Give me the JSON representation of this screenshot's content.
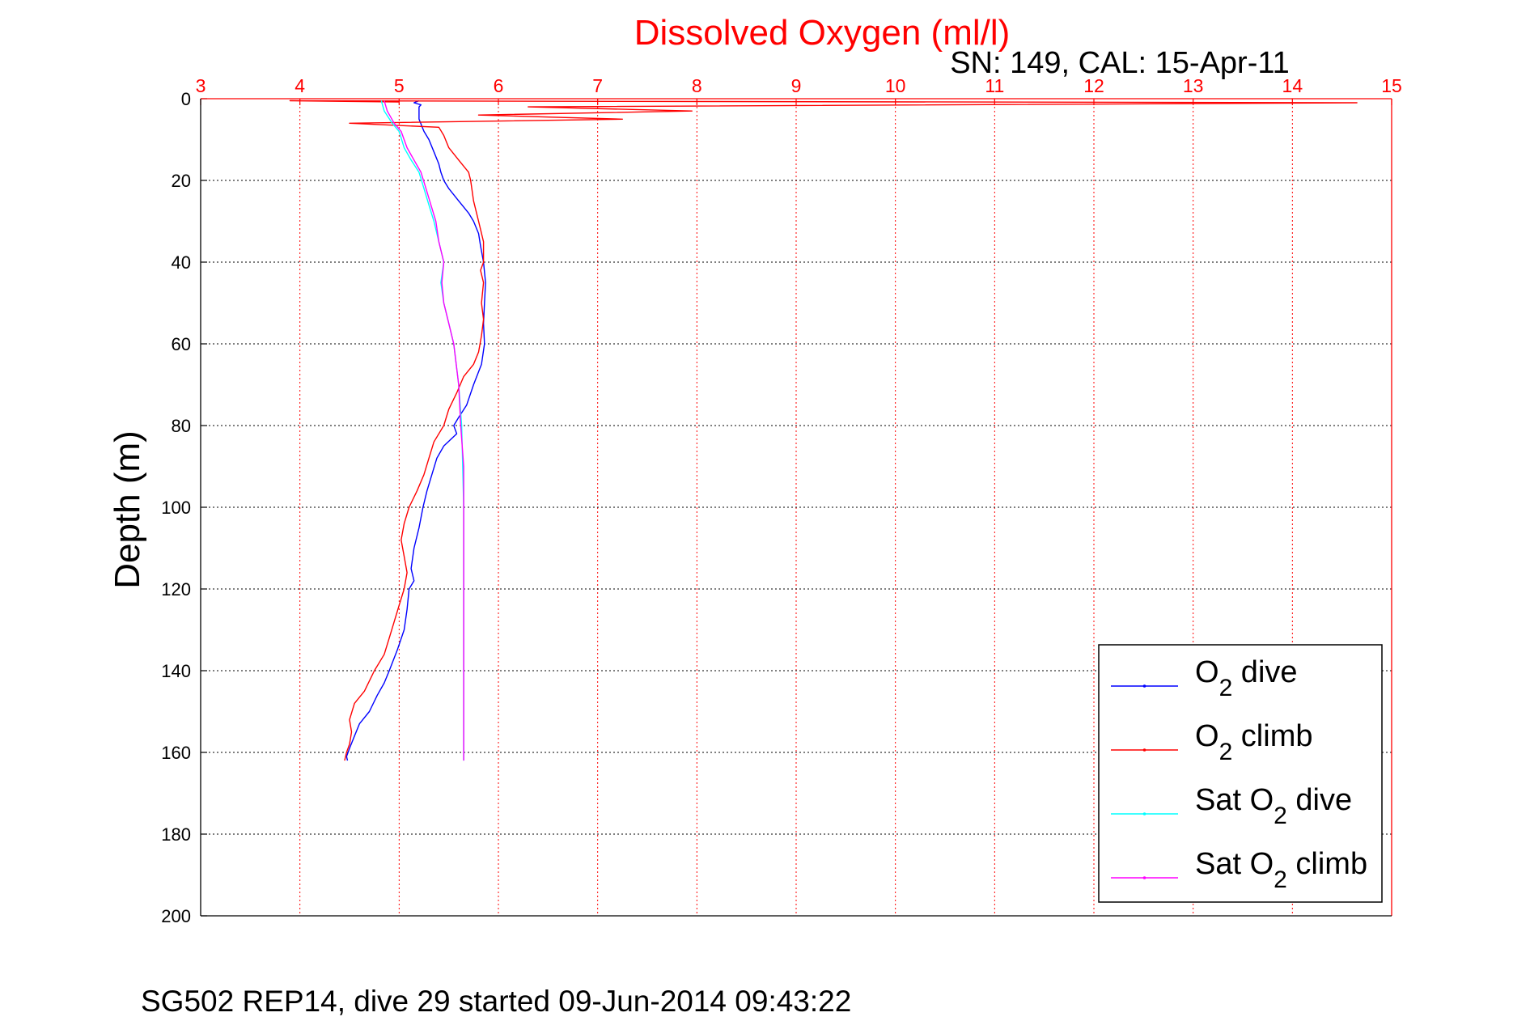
{
  "chart_data": {
    "type": "line",
    "title": "Dissolved Oxygen (ml/l)",
    "subtitle": "SN: 149, CAL: 15-Apr-11",
    "footer": "SG502 REP14, dive 29 started 09-Jun-2014 09:43:22",
    "xlabel": "",
    "ylabel": "Depth (m)",
    "xlim": [
      3,
      15
    ],
    "ylim": [
      0,
      200
    ],
    "y_reversed": true,
    "x_axis_position": "top",
    "x_ticks": [
      "3",
      "4",
      "5",
      "6",
      "7",
      "8",
      "9",
      "10",
      "11",
      "12",
      "13",
      "14",
      "15"
    ],
    "y_ticks": [
      "0",
      "20",
      "40",
      "60",
      "80",
      "100",
      "120",
      "140",
      "160",
      "180",
      "200"
    ],
    "grid": true,
    "legend_position": "bottom-right",
    "colors": {
      "title": "#ff0000",
      "x_axis": "#ff0000",
      "y_axis": "#000000",
      "grid_x": "#ff0000",
      "grid_y": "#000000"
    },
    "series": [
      {
        "name": "O2 dive",
        "legend_main": "O",
        "legend_sub": "2",
        "legend_rest": " dive",
        "color": "#0000ff",
        "points": [
          [
            5.2,
            0.5
          ],
          [
            5.15,
            1
          ],
          [
            5.22,
            1.5
          ],
          [
            5.2,
            2
          ],
          [
            5.2,
            5
          ],
          [
            5.25,
            8
          ],
          [
            5.3,
            10
          ],
          [
            5.35,
            13
          ],
          [
            5.4,
            16
          ],
          [
            5.42,
            18
          ],
          [
            5.45,
            20
          ],
          [
            5.5,
            22
          ],
          [
            5.6,
            25
          ],
          [
            5.7,
            28
          ],
          [
            5.75,
            30
          ],
          [
            5.8,
            33
          ],
          [
            5.82,
            36
          ],
          [
            5.85,
            40
          ],
          [
            5.87,
            45
          ],
          [
            5.86,
            50
          ],
          [
            5.85,
            55
          ],
          [
            5.86,
            60
          ],
          [
            5.83,
            65
          ],
          [
            5.75,
            70
          ],
          [
            5.68,
            75
          ],
          [
            5.6,
            78
          ],
          [
            5.55,
            80
          ],
          [
            5.58,
            82
          ],
          [
            5.45,
            85
          ],
          [
            5.38,
            88
          ],
          [
            5.33,
            92
          ],
          [
            5.28,
            96
          ],
          [
            5.24,
            100
          ],
          [
            5.2,
            105
          ],
          [
            5.15,
            110
          ],
          [
            5.12,
            115
          ],
          [
            5.15,
            118
          ],
          [
            5.1,
            120
          ],
          [
            5.08,
            125
          ],
          [
            5.05,
            130
          ],
          [
            4.98,
            135
          ],
          [
            4.9,
            140
          ],
          [
            4.85,
            143
          ],
          [
            4.78,
            146
          ],
          [
            4.7,
            150
          ],
          [
            4.6,
            153
          ],
          [
            4.55,
            156
          ],
          [
            4.5,
            159
          ],
          [
            4.47,
            161
          ],
          [
            4.48,
            162
          ]
        ]
      },
      {
        "name": "O2 climb",
        "legend_main": "O",
        "legend_sub": "2",
        "legend_rest": " climb",
        "color": "#ff0000",
        "points": [
          [
            4.45,
            162
          ],
          [
            4.47,
            160
          ],
          [
            4.5,
            158
          ],
          [
            4.52,
            155
          ],
          [
            4.5,
            152
          ],
          [
            4.55,
            148
          ],
          [
            4.65,
            145
          ],
          [
            4.75,
            140
          ],
          [
            4.85,
            136
          ],
          [
            4.9,
            132
          ],
          [
            4.95,
            128
          ],
          [
            5.0,
            124
          ],
          [
            5.05,
            120
          ],
          [
            5.08,
            116
          ],
          [
            5.05,
            112
          ],
          [
            5.02,
            108
          ],
          [
            5.05,
            104
          ],
          [
            5.1,
            100
          ],
          [
            5.18,
            96
          ],
          [
            5.25,
            92
          ],
          [
            5.3,
            88
          ],
          [
            5.35,
            84
          ],
          [
            5.45,
            80
          ],
          [
            5.5,
            76
          ],
          [
            5.58,
            72
          ],
          [
            5.65,
            68
          ],
          [
            5.75,
            65
          ],
          [
            5.8,
            62
          ],
          [
            5.83,
            58
          ],
          [
            5.85,
            54
          ],
          [
            5.83,
            50
          ],
          [
            5.85,
            45
          ],
          [
            5.82,
            42
          ],
          [
            5.85,
            40
          ],
          [
            5.85,
            35
          ],
          [
            5.8,
            30
          ],
          [
            5.75,
            25
          ],
          [
            5.72,
            20
          ],
          [
            5.7,
            18
          ],
          [
            5.6,
            15
          ],
          [
            5.5,
            12
          ],
          [
            5.45,
            9
          ],
          [
            5.4,
            7
          ],
          [
            4.5,
            6
          ],
          [
            7.25,
            5
          ],
          [
            5.8,
            4
          ],
          [
            7.95,
            3
          ],
          [
            6.3,
            2
          ],
          [
            14.65,
            1
          ],
          [
            3.9,
            0.5
          ],
          [
            5.0,
            0.8
          ]
        ]
      },
      {
        "name": "Sat O2 dive",
        "legend_main": "Sat O",
        "legend_sub": "2",
        "legend_rest": " dive",
        "color": "#00ffff",
        "points": [
          [
            4.82,
            0.5
          ],
          [
            4.85,
            3
          ],
          [
            4.93,
            6
          ],
          [
            5.0,
            8
          ],
          [
            5.05,
            12
          ],
          [
            5.12,
            15
          ],
          [
            5.2,
            18
          ],
          [
            5.25,
            22
          ],
          [
            5.3,
            26
          ],
          [
            5.35,
            30
          ],
          [
            5.4,
            35
          ],
          [
            5.45,
            40
          ],
          [
            5.42,
            45
          ],
          [
            5.45,
            50
          ],
          [
            5.5,
            55
          ],
          [
            5.55,
            60
          ],
          [
            5.6,
            70
          ],
          [
            5.63,
            80
          ],
          [
            5.65,
            100
          ],
          [
            5.65,
            120
          ],
          [
            5.65,
            140
          ],
          [
            5.65,
            160
          ],
          [
            5.65,
            162
          ]
        ]
      },
      {
        "name": "Sat O2 climb",
        "legend_main": "Sat O",
        "legend_sub": "2",
        "legend_rest": " climb",
        "color": "#ff00ff",
        "points": [
          [
            5.65,
            162
          ],
          [
            5.65,
            150
          ],
          [
            5.65,
            130
          ],
          [
            5.65,
            110
          ],
          [
            5.65,
            90
          ],
          [
            5.62,
            80
          ],
          [
            5.6,
            70
          ],
          [
            5.55,
            60
          ],
          [
            5.5,
            55
          ],
          [
            5.45,
            50
          ],
          [
            5.43,
            45
          ],
          [
            5.45,
            40
          ],
          [
            5.4,
            35
          ],
          [
            5.37,
            30
          ],
          [
            5.32,
            26
          ],
          [
            5.27,
            22
          ],
          [
            5.22,
            18
          ],
          [
            5.15,
            15
          ],
          [
            5.08,
            12
          ],
          [
            5.02,
            8
          ],
          [
            4.95,
            6
          ],
          [
            4.88,
            3
          ],
          [
            4.85,
            0.5
          ]
        ]
      }
    ]
  }
}
